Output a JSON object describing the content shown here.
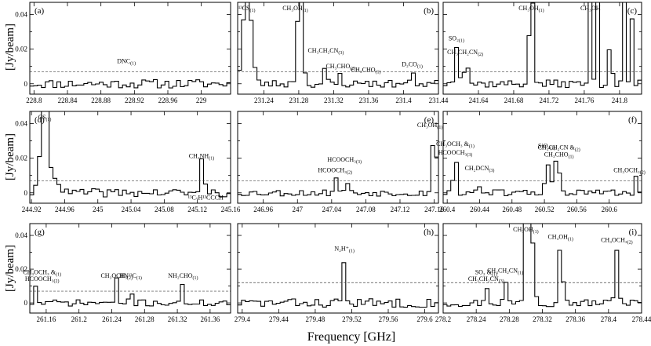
{
  "figure": {
    "xlabel": "Frequency [GHz]",
    "ylabel": "[Jy/beam]"
  },
  "chart_data": [
    {
      "type": "line",
      "tag": "(a)",
      "xlim": [
        228.795,
        229.035
      ],
      "ylim": [
        -0.006,
        0.047
      ],
      "threshold": 0.007,
      "xticks": [
        228.8,
        228.84,
        228.88,
        228.92,
        228.96,
        229
      ],
      "xticklabels": [
        "228.8",
        "228.84",
        "228.88",
        "228.92",
        "228.96",
        "229"
      ],
      "yticks": [
        0,
        0.02,
        0.04
      ],
      "yticklabels": [
        "0",
        "0.02",
        "0.04"
      ],
      "peaks": [
        [
          228.9058,
          0.009,
          0.0008
        ],
        [
          228.9104,
          0.011,
          0.0008
        ]
      ],
      "noise": 0.0026,
      "seed": 11,
      "annotations": [
        {
          "text": "DNC",
          "sub": "(1)",
          "x": 228.9105,
          "y": 0.012
        }
      ]
    },
    {
      "type": "line",
      "tag": "(b)",
      "xlim": [
        231.21,
        231.44
      ],
      "ylim": [
        -0.006,
        0.047
      ],
      "threshold": 0.007,
      "xticks": [
        231.24,
        231.28,
        231.32,
        231.36,
        231.4,
        231.44
      ],
      "xticklabels": [
        "231.24",
        "231.28",
        "231.32",
        "231.36",
        "231.4",
        "231.44"
      ],
      "yticks": [],
      "yticklabels": [],
      "peaks": [
        [
          231.221,
          0.06,
          0.0045
        ],
        [
          231.2813,
          0.06,
          0.0028
        ],
        [
          231.311,
          0.016,
          0.0012
        ],
        [
          231.328,
          0.007,
          0.0009
        ],
        [
          231.357,
          0.005,
          0.0009
        ],
        [
          231.411,
          0.008,
          0.001
        ]
      ],
      "noise": 0.0022,
      "seed": 23,
      "annotations": [
        {
          "text": "¹³CS",
          "sub": "(1)",
          "x": 231.2205,
          "y": 0.048
        },
        {
          "text": "CH₃OH",
          "sub": "(1)",
          "x": 231.276,
          "y": 0.047
        },
        {
          "text": "CH₃CH₂CN",
          "sub": "(3)",
          "x": 231.311,
          "y": 0.018
        },
        {
          "text": "CH₃CHO",
          "sub": "(2)",
          "x": 231.328,
          "y": 0.009
        },
        {
          "text": "CH₃CHO",
          "sub": "(1)",
          "x": 231.357,
          "y": 0.007
        },
        {
          "text": "D₂CO",
          "sub": "(1)",
          "x": 231.41,
          "y": 0.01
        }
      ]
    },
    {
      "type": "line",
      "tag": "(c)",
      "xlim": [
        241.6,
        241.825
      ],
      "ylim": [
        -0.006,
        0.047
      ],
      "threshold": 0.007,
      "xticks": [
        241.64,
        241.68,
        241.72,
        241.76,
        241.8
      ],
      "xticklabels": [
        "241.64",
        "241.68",
        "241.72",
        "241.76",
        "241.8"
      ],
      "yticks": [],
      "yticklabels": [],
      "peaks": [
        [
          241.615,
          0.023,
          0.002
        ],
        [
          241.622,
          0.015,
          0.0015
        ],
        [
          241.628,
          0.01,
          0.0015
        ],
        [
          241.7,
          0.06,
          0.0022
        ],
        [
          241.767,
          0.06,
          0.0012
        ],
        [
          241.775,
          0.06,
          0.0012
        ],
        [
          241.79,
          0.06,
          0.0012
        ],
        [
          241.805,
          0.06,
          0.0012
        ],
        [
          241.813,
          0.06,
          0.0012
        ]
      ],
      "noise": 0.0022,
      "seed": 37,
      "annotations": [
        {
          "text": "SO₂",
          "sub": "(1)",
          "x": 241.615,
          "y": 0.025
        },
        {
          "text": "CH₃CH₂CN",
          "sub": "(2)",
          "x": 241.625,
          "y": 0.017
        },
        {
          "text": "CH₃OH",
          "sub": "(1)",
          "x": 241.7,
          "y": 0.047
        },
        {
          "text": "CH₃OH",
          "sub": "",
          "x": 241.767,
          "y": 0.047
        }
      ]
    },
    {
      "type": "line",
      "tag": "(d)",
      "xlim": [
        244.918,
        245.16
      ],
      "ylim": [
        -0.006,
        0.047
      ],
      "threshold": 0.007,
      "xticks": [
        244.92,
        244.96,
        245,
        245.04,
        245.08,
        245.12,
        245.16
      ],
      "xticklabels": [
        "244.92",
        "244.96",
        "245",
        "245.04",
        "245.08",
        "245.12",
        "245.16"
      ],
      "yticks": [
        0,
        0.02,
        0.04
      ],
      "yticklabels": [
        "0",
        "0.02",
        "0.04"
      ],
      "peaks": [
        [
          244.936,
          0.06,
          0.0042
        ],
        [
          244.949,
          0.01,
          0.004
        ],
        [
          245.125,
          0.018,
          0.0012
        ],
        [
          245.1295,
          0.007,
          0.0012
        ]
      ],
      "noise": 0.0024,
      "seed": 41,
      "annotations": [
        {
          "text": "CS",
          "sub": "(1)",
          "x": 244.936,
          "y": 0.047
        },
        {
          "text": "CH₂NH",
          "sub": "(1)",
          "x": 245.125,
          "y": 0.02
        },
        {
          "text": "¹³C-H¹³CCCH",
          "sub": "",
          "x": 245.13,
          "y": -0.004
        }
      ]
    },
    {
      "type": "line",
      "tag": "(e)",
      "xlim": [
        246.93,
        247.165
      ],
      "ylim": [
        -0.006,
        0.047
      ],
      "threshold": 0.007,
      "xticks": [
        246.96,
        247,
        247.04,
        247.08,
        247.12,
        247.16
      ],
      "xticklabels": [
        "246.96",
        "247",
        "247.04",
        "247.08",
        "247.12",
        "247.16"
      ],
      "yticks": [],
      "yticklabels": [],
      "peaks": [
        [
          247.044,
          0.01,
          0.0018
        ],
        [
          247.057,
          0.012,
          0.0015
        ],
        [
          247.16,
          0.036,
          0.0025
        ]
      ],
      "noise": 0.0019,
      "seed": 53,
      "annotations": [
        {
          "text": "HCOOCH₃",
          "sub": "(2)",
          "x": 247.044,
          "y": 0.012
        },
        {
          "text": "HCOOCH₃",
          "sub": "(3)",
          "x": 247.055,
          "y": 0.018
        },
        {
          "text": "CH₃OH",
          "sub": "(1)",
          "x": 247.155,
          "y": 0.038
        }
      ]
    },
    {
      "type": "line",
      "tag": "(f)",
      "xlim": [
        260.395,
        260.64
      ],
      "ylim": [
        -0.006,
        0.047
      ],
      "threshold": 0.007,
      "xticks": [
        260.4,
        260.44,
        260.48,
        260.52,
        260.56,
        260.6
      ],
      "xticklabels": [
        "260.4",
        "260.44",
        "260.48",
        "260.52",
        "260.56",
        "260.6"
      ],
      "yticks": [],
      "yticklabels": [],
      "peaks": [
        [
          260.41,
          0.02,
          0.0022
        ],
        [
          260.438,
          0.01,
          0.0015
        ],
        [
          260.523,
          0.024,
          0.0018
        ],
        [
          260.533,
          0.015,
          0.0025
        ],
        [
          260.538,
          0.012,
          0.0025
        ],
        [
          260.632,
          0.011,
          0.0012
        ]
      ],
      "noise": 0.0019,
      "seed": 61,
      "annotations": [
        {
          "text": "CH₃OCH₃ &",
          "sub": "(1)",
          "x": 260.41,
          "y": 0.027
        },
        {
          "text": "HCOOCH₃",
          "sub": "(3)",
          "x": 260.41,
          "y": 0.022
        },
        {
          "text": "CH₂DCN",
          "sub": "(3)",
          "x": 260.44,
          "y": 0.013
        },
        {
          "text": "SiO₂",
          "sub": "(1)",
          "x": 260.523,
          "y": 0.026
        },
        {
          "text": "CH₃CH₂CN &",
          "sub": "(2)",
          "x": 260.538,
          "y": 0.025
        },
        {
          "text": "CH₃CHO",
          "sub": "(1)",
          "x": 260.538,
          "y": 0.021
        },
        {
          "text": "CH₃OCH₃",
          "sub": "(2)",
          "x": 260.625,
          "y": 0.012
        }
      ]
    },
    {
      "type": "line",
      "tag": "(g)",
      "xlim": [
        261.14,
        261.385
      ],
      "ylim": [
        -0.006,
        0.047
      ],
      "threshold": 0.007,
      "xticks": [
        261.16,
        261.2,
        261.24,
        261.28,
        261.32,
        261.36
      ],
      "xticklabels": [
        "261.16",
        "261.2",
        "261.24",
        "261.28",
        "261.32",
        "261.36"
      ],
      "yticks": [
        0,
        0.02,
        0.04
      ],
      "yticklabels": [
        "0",
        "0.02",
        "0.04"
      ],
      "peaks": [
        [
          261.148,
          0.011,
          0.0015
        ],
        [
          261.246,
          0.013,
          0.0018
        ],
        [
          261.263,
          0.011,
          0.0015
        ],
        [
          261.327,
          0.011,
          0.0015
        ]
      ],
      "noise": 0.0019,
      "seed": 71,
      "annotations": [
        {
          "text": "CH₃OCH₃ &",
          "sub": "(1)",
          "x": 261.155,
          "y": 0.017
        },
        {
          "text": "HCOOCH₃",
          "sub": "(2)",
          "x": 261.155,
          "y": 0.013
        },
        {
          "text": "CH₃OCH₃",
          "sub": "(2)",
          "x": 261.246,
          "y": 0.015
        },
        {
          "text": "HN¹³C",
          "sub": "(1)",
          "x": 261.263,
          "y": 0.015
        },
        {
          "text": "NH₂CHO",
          "sub": "(1)",
          "x": 261.327,
          "y": 0.015
        }
      ]
    },
    {
      "type": "line",
      "tag": "(h)",
      "xlim": [
        279.395,
        279.615
      ],
      "ylim": [
        -0.006,
        0.047
      ],
      "threshold": 0.012,
      "xticks": [
        279.4,
        279.44,
        279.48,
        279.52,
        279.56,
        279.6
      ],
      "xticklabels": [
        "279.4",
        "279.44",
        "279.48",
        "279.52",
        "279.56",
        "279.6"
      ],
      "yticks": [],
      "yticklabels": [],
      "peaks": [
        [
          279.512,
          0.029,
          0.0012
        ]
      ],
      "noise": 0.0026,
      "seed": 83,
      "annotations": [
        {
          "text": "N₂H⁺",
          "sub": "(1)",
          "x": 279.512,
          "y": 0.031
        }
      ]
    },
    {
      "type": "line",
      "tag": "(i)",
      "xlim": [
        278.2,
        278.44
      ],
      "ylim": [
        -0.006,
        0.047
      ],
      "threshold": 0.012,
      "xticks": [
        278.2,
        278.24,
        278.28,
        278.32,
        278.36,
        278.4,
        278.44
      ],
      "xticklabels": [
        "278.2",
        "278.24",
        "278.28",
        "278.32",
        "278.36",
        "278.4",
        "278.44"
      ],
      "yticks": [],
      "yticklabels": [],
      "peaks": [
        [
          278.253,
          0.01,
          0.0015
        ],
        [
          278.275,
          0.016,
          0.0015
        ],
        [
          278.3,
          0.04,
          0.0018
        ],
        [
          278.305,
          0.06,
          0.0035
        ],
        [
          278.342,
          0.036,
          0.0025
        ],
        [
          278.41,
          0.033,
          0.002
        ]
      ],
      "noise": 0.0022,
      "seed": 97,
      "annotations": [
        {
          "text": "SO₂ &",
          "sub": "(1)",
          "x": 278.252,
          "y": 0.017
        },
        {
          "text": "CH₃CH₂CN",
          "sub": "(3)",
          "x": 278.252,
          "y": 0.013
        },
        {
          "text": "CH₃CH₂CN",
          "sub": "(1)",
          "x": 278.275,
          "y": 0.018
        },
        {
          "text": "CH₃OH",
          "sub": "(1)",
          "x": 278.3,
          "y": 0.043
        },
        {
          "text": "CH₃OH",
          "sub": "(1)",
          "x": 278.342,
          "y": 0.038
        },
        {
          "text": "CH₃OCH₃",
          "sub": "(2)",
          "x": 278.41,
          "y": 0.036
        }
      ]
    }
  ]
}
